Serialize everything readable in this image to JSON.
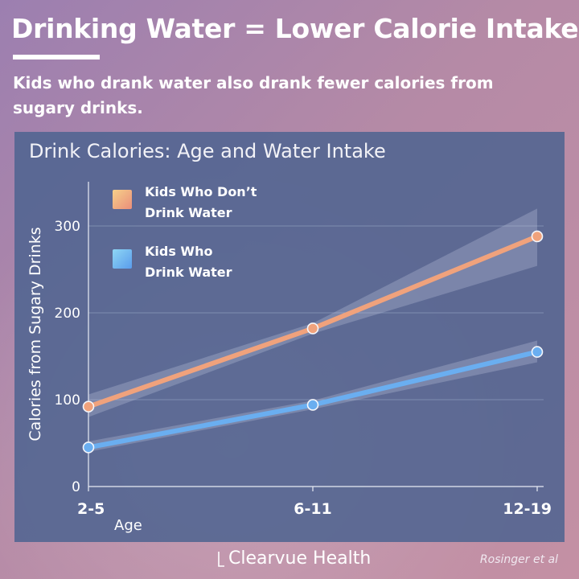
{
  "header": {
    "title": "Drinking Water = Lower Calorie Intake",
    "subtitle": "Kids who drank water also drank fewer calories from sugary drinks."
  },
  "chart_data": {
    "type": "line",
    "title": "Drink Calories: Age and Water Intake",
    "xlabel": "Age",
    "ylabel": "Calories from Sugary Drinks",
    "categories": [
      "2-5",
      "6-11",
      "12-19"
    ],
    "y_ticks": [
      0,
      100,
      200,
      300
    ],
    "ylim": [
      0,
      340
    ],
    "grid": true,
    "legend_position": "top-left",
    "series": [
      {
        "name": "Kids Who Don’t Drink Water",
        "legend_lines": [
          "Kids Who Don’t",
          "Drink Water"
        ],
        "color": "#f0a27c",
        "values": [
          92,
          182,
          288
        ],
        "band_low": [
          80,
          176,
          254
        ],
        "band_high": [
          106,
          188,
          320
        ]
      },
      {
        "name": "Kids Who Drink Water",
        "legend_lines": [
          "Kids Who",
          "Drink Water"
        ],
        "color": "#6aaef0",
        "values": [
          45,
          94,
          155
        ],
        "band_low": [
          40,
          89,
          143
        ],
        "band_high": [
          52,
          99,
          168
        ]
      }
    ]
  },
  "footer": {
    "brand": "Clearvue Health",
    "credit": "Rosinger et al"
  },
  "colors": {
    "panel": "#5a6c96",
    "gridline": "#8a99bb",
    "dark_series": "#f0a27c",
    "light_series": "#6aaef0"
  }
}
